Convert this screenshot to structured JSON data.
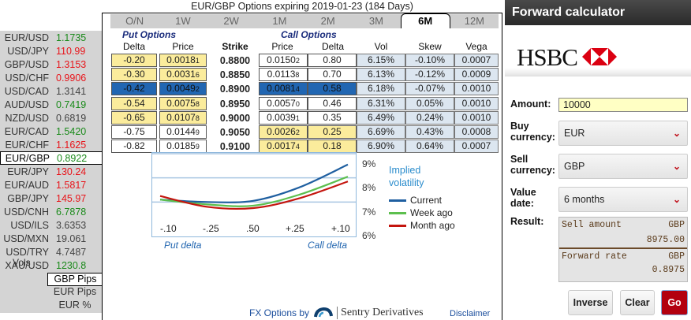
{
  "rates": [
    {
      "pair": "EUR/USD",
      "value": "1.1735",
      "color": "green"
    },
    {
      "pair": "USD/JPY",
      "value": "110.99",
      "color": "red"
    },
    {
      "pair": "GBP/USD",
      "value": "1.3153",
      "color": "red"
    },
    {
      "pair": "USD/CHF",
      "value": "0.9906",
      "color": "red"
    },
    {
      "pair": "USD/CAD",
      "value": "1.3141",
      "color": "gray"
    },
    {
      "pair": "AUD/USD",
      "value": "0.7419",
      "color": "green"
    },
    {
      "pair": "NZD/USD",
      "value": "0.6819",
      "color": "gray"
    },
    {
      "pair": "EUR/CAD",
      "value": "1.5420",
      "color": "green"
    },
    {
      "pair": "EUR/CHF",
      "value": "1.1625",
      "color": "red"
    },
    {
      "pair": "EUR/GBP",
      "value": "0.8922",
      "color": "green",
      "selected": true
    },
    {
      "pair": "EUR/JPY",
      "value": "130.24",
      "color": "red"
    },
    {
      "pair": "EUR/AUD",
      "value": "1.5817",
      "color": "red"
    },
    {
      "pair": "GBP/JPY",
      "value": "145.97",
      "color": "red"
    },
    {
      "pair": "USD/CNH",
      "value": "6.7878",
      "color": "green"
    },
    {
      "pair": "USD/ILS",
      "value": "3.6353",
      "color": "gray"
    },
    {
      "pair": "USD/MXN",
      "value": "19.061",
      "color": "gray"
    },
    {
      "pair": "USD/TRY",
      "value": "4.7487",
      "color": "gray"
    },
    {
      "pair": "XAU/USD",
      "value": "1230.8",
      "color": "green"
    }
  ],
  "vols": {
    "label": "Vols",
    "units": [
      "GBP Pips",
      "EUR Pips",
      "EUR %"
    ],
    "active_unit": "GBP Pips"
  },
  "options": {
    "title": "EUR/GBP Options expiring 2019-01-23 (184 Days)",
    "tabs": [
      "O/N",
      "1W",
      "2W",
      "1M",
      "2M",
      "3M",
      "6M",
      "12M"
    ],
    "active_tab": "6M",
    "put_header": "Put Options",
    "call_header": "Call Options",
    "columns": {
      "put_delta": "Delta",
      "put_price": "Price",
      "strike": "Strike",
      "call_price": "Price",
      "call_delta": "Delta",
      "vol": "Vol",
      "skew": "Skew",
      "vega": "Vega"
    },
    "rows": [
      {
        "put_delta": "-0.20",
        "put_price": "0.0018",
        "put_price_sub": "1",
        "strike": "0.8800",
        "call_price": "0.0150",
        "call_price_sub": "2",
        "call_delta": "0.80",
        "vol": "6.15%",
        "skew": "-0.10%",
        "vega": "0.0007",
        "put_style": "yellow",
        "call_style": "white"
      },
      {
        "put_delta": "-0.30",
        "put_price": "0.0031",
        "put_price_sub": "6",
        "strike": "0.8850",
        "call_price": "0.0113",
        "call_price_sub": "8",
        "call_delta": "0.70",
        "vol": "6.13%",
        "skew": "-0.12%",
        "vega": "0.0009",
        "put_style": "yellow",
        "call_style": "white"
      },
      {
        "put_delta": "-0.42",
        "put_price": "0.0049",
        "put_price_sub": "2",
        "strike": "0.8900",
        "call_price": "0.0081",
        "call_price_sub": "4",
        "call_delta": "0.58",
        "vol": "6.18%",
        "skew": "-0.07%",
        "vega": "0.0010",
        "put_style": "blue",
        "call_style": "blue"
      },
      {
        "put_delta": "-0.54",
        "put_price": "0.0075",
        "put_price_sub": "8",
        "strike": "0.8950",
        "call_price": "0.0057",
        "call_price_sub": "0",
        "call_delta": "0.46",
        "vol": "6.31%",
        "skew": "0.05%",
        "vega": "0.0010",
        "put_style": "yellow",
        "call_style": "white"
      },
      {
        "put_delta": "-0.65",
        "put_price": "0.0107",
        "put_price_sub": "8",
        "strike": "0.9000",
        "call_price": "0.0039",
        "call_price_sub": "1",
        "call_delta": "0.35",
        "vol": "6.49%",
        "skew": "0.24%",
        "vega": "0.0010",
        "put_style": "yellow",
        "call_style": "white"
      },
      {
        "put_delta": "-0.75",
        "put_price": "0.0144",
        "put_price_sub": "9",
        "strike": "0.9050",
        "call_price": "0.0026",
        "call_price_sub": "2",
        "call_delta": "0.25",
        "vol": "6.69%",
        "skew": "0.43%",
        "vega": "0.0008",
        "put_style": "white",
        "call_style": "yellow"
      },
      {
        "put_delta": "-0.82",
        "put_price": "0.0185",
        "put_price_sub": "9",
        "strike": "0.9100",
        "call_price": "0.0017",
        "call_price_sub": "4",
        "call_delta": "0.18",
        "vol": "6.90%",
        "skew": "0.64%",
        "vega": "0.0007",
        "put_style": "white",
        "call_style": "yellow"
      }
    ]
  },
  "chart_data": {
    "type": "line",
    "title": "Implied volatility",
    "x": [
      "-.10",
      "-.25",
      ".50",
      "+.25",
      "+.10"
    ],
    "ylabel": "",
    "yticks": [
      "9%",
      "8%",
      "7%",
      "6%"
    ],
    "ylim": [
      6,
      9
    ],
    "put_delta_label": "Put delta",
    "call_delta_label": "Call delta",
    "series": [
      {
        "name": "Current",
        "color": "#1f5fa0",
        "values": [
          7.1,
          7.0,
          7.05,
          7.6,
          8.55
        ]
      },
      {
        "name": "Week ago",
        "color": "#5cbf4e",
        "values": [
          7.1,
          6.9,
          6.85,
          7.3,
          8.05
        ]
      },
      {
        "name": "Month ago",
        "color": "#c4150e",
        "values": [
          7.25,
          6.8,
          6.75,
          7.15,
          7.85
        ]
      }
    ],
    "legend": "right"
  },
  "footer": {
    "fx_by": "FX Options by",
    "brand": "Sentry Derivatives",
    "disclaimer": "Disclaimer"
  },
  "calculator": {
    "title": "Forward calculator",
    "bank": "HSBC",
    "amount_label": "Amount:",
    "amount_value": "10000",
    "buy_label_1": "Buy",
    "buy_label_2": "currency:",
    "buy_value": "EUR",
    "sell_label_1": "Sell",
    "sell_label_2": "currency:",
    "sell_value": "GBP",
    "date_label_1": "Value",
    "date_label_2": "date:",
    "date_value": "6 months",
    "result_label": "Result:",
    "sell_amount_label": "Sell amount",
    "sell_amount_ccy": "GBP",
    "sell_amount_value": "8975.00",
    "forward_rate_label": "Forward rate",
    "forward_rate_ccy": "GBP",
    "forward_rate_value": "0.8975",
    "buttons": {
      "inverse": "Inverse",
      "clear": "Clear",
      "go": "Go"
    }
  }
}
